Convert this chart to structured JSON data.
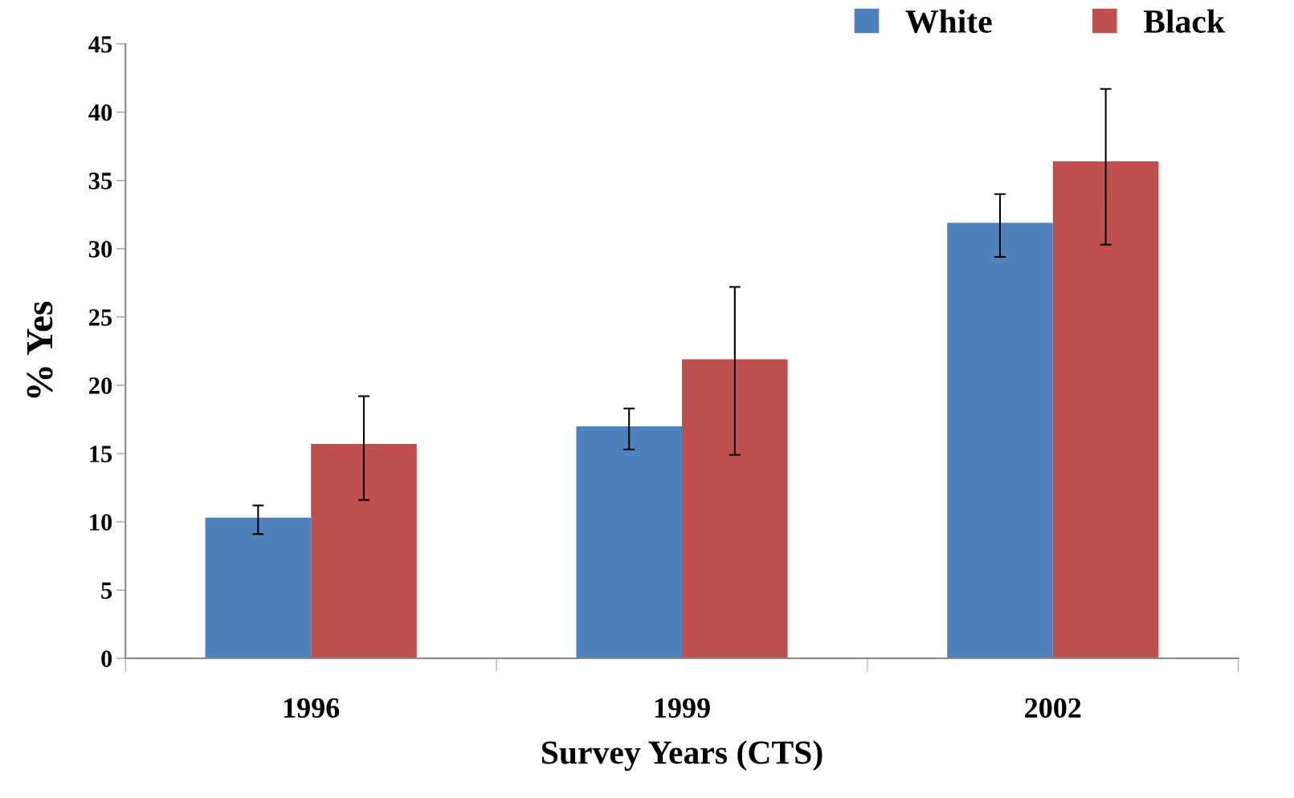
{
  "chart_data": {
    "type": "bar",
    "xlabel": "Survey Years (CTS)",
    "ylabel": "% Yes",
    "categories": [
      "1996",
      "1999",
      "2002"
    ],
    "series": [
      {
        "name": "White",
        "color": "#4f81bd",
        "values": [
          10.3,
          17.0,
          31.9
        ],
        "errors": [
          [
            9.1,
            11.2
          ],
          [
            15.3,
            18.3
          ],
          [
            29.4,
            34.0
          ]
        ]
      },
      {
        "name": "Black",
        "color": "#c0504d",
        "values": [
          15.7,
          21.9,
          36.4
        ],
        "errors": [
          [
            11.6,
            19.2
          ],
          [
            14.9,
            27.2
          ],
          [
            30.3,
            41.7
          ]
        ]
      }
    ],
    "ylim": [
      0,
      45
    ],
    "yticks": [
      0,
      5,
      10,
      15,
      20,
      25,
      30,
      35,
      40,
      45
    ],
    "grid": false,
    "legend": "top right"
  }
}
